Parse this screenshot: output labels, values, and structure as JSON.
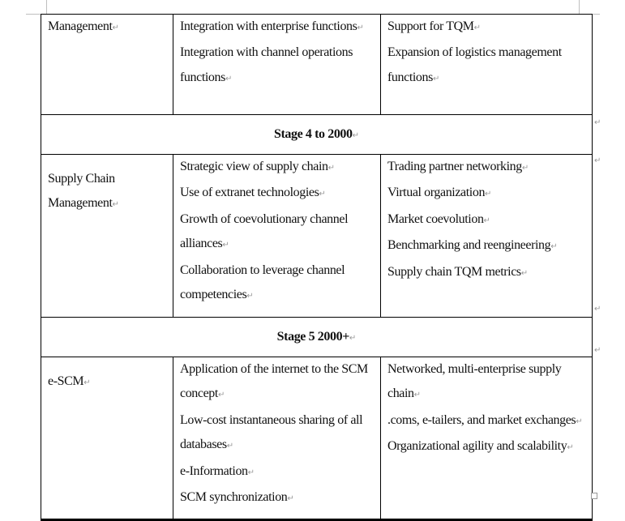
{
  "table": {
    "rows": [
      {
        "stage": "Management",
        "characteristics": [
          "Integration with enterprise functions",
          "Integration with channel operations functions"
        ],
        "features": [
          "Support for TQM",
          "Expansion of logistics management functions"
        ]
      },
      {
        "header": "Stage 4 to 2000"
      },
      {
        "stage": "Supply Chain Management",
        "characteristics": [
          "Strategic view of supply chain",
          "Use of extranet technologies",
          "Growth of coevolutionary channel alliances",
          "Collaboration to leverage channel competencies"
        ],
        "features": [
          "Trading partner networking",
          "Virtual organization",
          "Market coevolution",
          "Benchmarking and reengineering",
          "Supply chain TQM metrics"
        ]
      },
      {
        "header": "Stage 5 2000+"
      },
      {
        "stage": "e-SCM",
        "characteristics": [
          "Application of the internet to the SCM concept",
          "Low-cost instantaneous sharing of all databases",
          "e-Information",
          "SCM synchronization"
        ],
        "features": [
          "Networked, multi-enterprise supply chain",
          ".coms, e-tailers, and market exchanges",
          "Organizational agility and scalability"
        ]
      }
    ]
  },
  "paragraph_mark": "↵"
}
